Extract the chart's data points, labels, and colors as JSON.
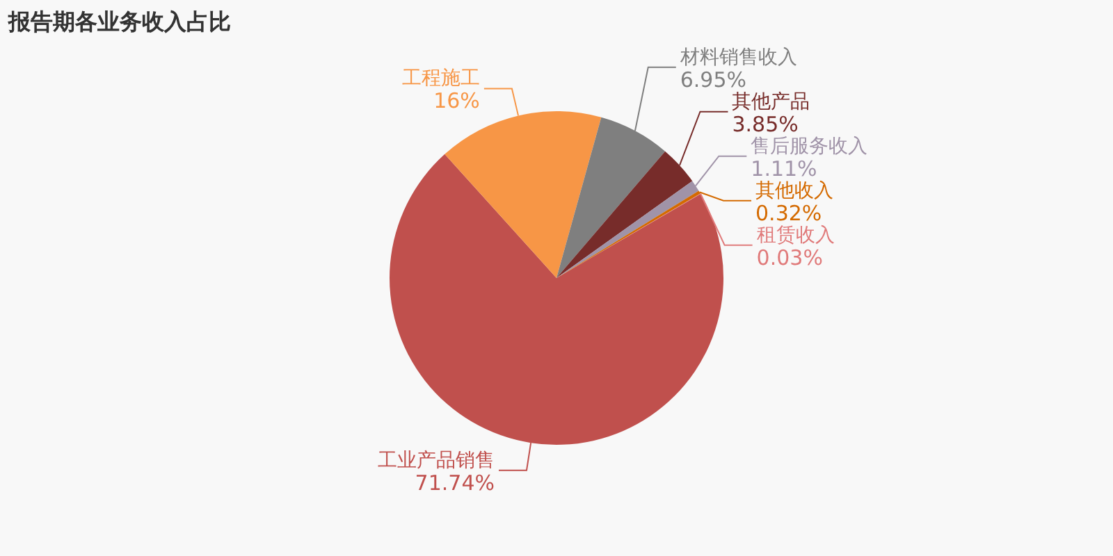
{
  "chart_data": {
    "type": "pie",
    "title": "报告期各业务收入占比",
    "categories": [
      "工业产品销售",
      "工程施工",
      "材料销售收入",
      "其他产品",
      "售后服务收入",
      "其他收入",
      "租赁收入"
    ],
    "values": [
      71.74,
      16,
      6.95,
      3.85,
      1.11,
      0.32,
      0.03
    ],
    "colors": [
      "#c0504d",
      "#f79646",
      "#7f7f7f",
      "#772c2a",
      "#a093a8",
      "#d46a00",
      "#e07a7a"
    ],
    "value_labels": [
      "71.74%",
      "16%",
      "6.95%",
      "3.85%",
      "1.11%",
      "0.32%",
      "0.03%"
    ]
  }
}
